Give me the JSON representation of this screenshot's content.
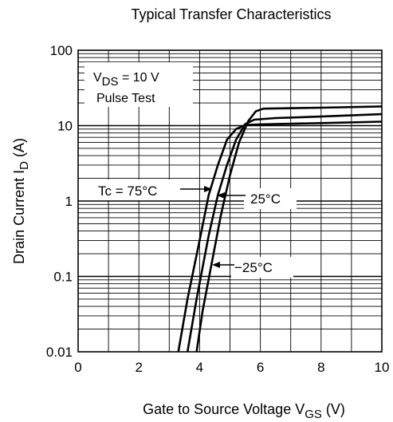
{
  "chart_data": {
    "type": "line",
    "title": "Typical Transfer Characteristics",
    "xlabel": {
      "main": "Gate to Source Voltage   V",
      "sub": "GS",
      "unit": "  (V)"
    },
    "ylabel": {
      "main": "Drain Current   I",
      "sub": "D",
      "unit": "  (A)"
    },
    "xlim": [
      0,
      10
    ],
    "ylim": [
      0.01,
      100
    ],
    "y_scale": "log",
    "grid": true,
    "x_ticks": [
      {
        "value": 0,
        "label": "0"
      },
      {
        "value": 2,
        "label": "2"
      },
      {
        "value": 4,
        "label": "4"
      },
      {
        "value": 6,
        "label": "6"
      },
      {
        "value": 8,
        "label": "8"
      },
      {
        "value": 10,
        "label": "10"
      }
    ],
    "y_ticks": [
      {
        "value": 0.01,
        "label": "0.01"
      },
      {
        "value": 0.1,
        "label": "0.1"
      },
      {
        "value": 1,
        "label": "1"
      },
      {
        "value": 10,
        "label": "10"
      },
      {
        "value": 100,
        "label": "100"
      }
    ],
    "conditions": [
      {
        "main": "V",
        "sub": "DS",
        "rest": " = 10 V"
      },
      {
        "main": "Pulse Test"
      }
    ],
    "series": [
      {
        "name": "Tc = 75°C",
        "points": [
          [
            3.3,
            0.01
          ],
          [
            3.6,
            0.05
          ],
          [
            4.0,
            0.3
          ],
          [
            4.3,
            1.2
          ],
          [
            4.6,
            3.0
          ],
          [
            4.9,
            6.5
          ],
          [
            5.2,
            9.0
          ],
          [
            5.5,
            10.2
          ],
          [
            6.0,
            10.4
          ],
          [
            8.0,
            10.8
          ],
          [
            10.0,
            11.3
          ]
        ]
      },
      {
        "name": "25°C",
        "points": [
          [
            3.6,
            0.01
          ],
          [
            3.9,
            0.05
          ],
          [
            4.3,
            0.35
          ],
          [
            4.6,
            1.2
          ],
          [
            4.9,
            3.0
          ],
          [
            5.2,
            6.5
          ],
          [
            5.5,
            10.5
          ],
          [
            5.8,
            12.0
          ],
          [
            6.5,
            12.6
          ],
          [
            8.0,
            13.2
          ],
          [
            10.0,
            14.2
          ]
        ]
      },
      {
        "name": "−25°C",
        "points": [
          [
            3.9,
            0.01
          ],
          [
            4.1,
            0.035
          ],
          [
            4.4,
            0.15
          ],
          [
            4.7,
            0.65
          ],
          [
            5.0,
            2.2
          ],
          [
            5.3,
            6.0
          ],
          [
            5.6,
            11.5
          ],
          [
            5.85,
            15.5
          ],
          [
            6.1,
            16.8
          ],
          [
            8.0,
            17.3
          ],
          [
            10.0,
            18.0
          ]
        ]
      }
    ],
    "annotations": [
      {
        "series": "Tc = 75°C",
        "text": "Tc = 75°C",
        "at": [
          4.3,
          1.8
        ]
      },
      {
        "series": "25°C",
        "text": "25°C",
        "at": [
          4.6,
          1.2
        ]
      },
      {
        "series": "−25°C",
        "text": "−25°C",
        "at": [
          4.5,
          0.13
        ]
      }
    ]
  }
}
